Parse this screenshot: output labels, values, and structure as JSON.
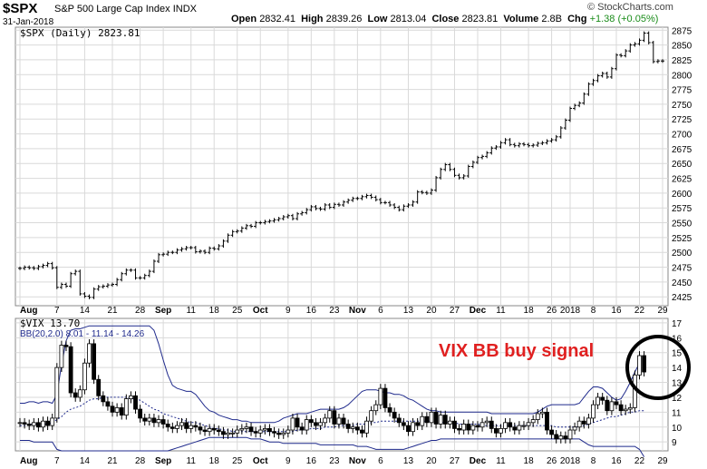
{
  "header": {
    "symbol": "$SPX",
    "company": "S&P 500 Large Cap Index",
    "exchange": "INDX",
    "date": "31-Jan-2018",
    "copyright": "© StockCharts.com",
    "open_label": "Open",
    "open": "2832.41",
    "high_label": "High",
    "high": "2839.26",
    "low_label": "Low",
    "low": "2813.04",
    "close_label": "Close",
    "close": "2823.81",
    "volume_label": "Volume",
    "volume": "2.8B",
    "chg_label": "Chg",
    "chg": "+1.38 (+0.05%)",
    "chg_arrow": "▲"
  },
  "chart_data": [
    {
      "type": "line",
      "title": "$SPX (Daily) 2823.81",
      "style": "ohlc-bars",
      "ylim": [
        2410,
        2880
      ],
      "yticks": [
        2425,
        2450,
        2475,
        2500,
        2525,
        2550,
        2575,
        2600,
        2625,
        2650,
        2675,
        2700,
        2725,
        2750,
        2775,
        2800,
        2825,
        2850,
        2875
      ],
      "xticks": [
        "Aug",
        "7",
        "14",
        "21",
        "28",
        "Sep",
        "11",
        "18",
        "25",
        "Oct",
        "9",
        "16",
        "23",
        "Nov",
        "6",
        "13",
        "20",
        "27",
        "Dec",
        "11",
        "18",
        "26",
        "2018",
        "8",
        "16",
        "22",
        "29"
      ],
      "grid": true,
      "series": [
        {
          "values": [
            2473,
            2475,
            2474,
            2473,
            2476,
            2478,
            2481,
            2474,
            2441,
            2446,
            2443,
            2464,
            2468,
            2430,
            2426,
            2424,
            2438,
            2442,
            2443,
            2445,
            2446,
            2454,
            2464,
            2470,
            2470,
            2457,
            2457,
            2461,
            2468,
            2485,
            2496,
            2497,
            2500,
            2500,
            2504,
            2506,
            2508,
            2508,
            2501,
            2502,
            2500,
            2507,
            2506,
            2511,
            2519,
            2529,
            2535,
            2536,
            2541,
            2545,
            2544,
            2550,
            2550,
            2552,
            2553,
            2555,
            2557,
            2560,
            2562,
            2557,
            2565,
            2567,
            2572,
            2577,
            2574,
            2573,
            2580,
            2576,
            2581,
            2580,
            2585,
            2588,
            2591,
            2591,
            2594,
            2596,
            2593,
            2589,
            2584,
            2584,
            2580,
            2576,
            2572,
            2578,
            2580,
            2585,
            2602,
            2601,
            2600,
            2605,
            2626,
            2640,
            2648,
            2640,
            2630,
            2626,
            2629,
            2645,
            2652,
            2660,
            2662,
            2668,
            2676,
            2678,
            2685,
            2690,
            2682,
            2680,
            2683,
            2682,
            2680,
            2681,
            2684,
            2685,
            2688,
            2690,
            2695,
            2710,
            2723,
            2743,
            2748,
            2752,
            2767,
            2784,
            2790,
            2798,
            2802,
            2796,
            2810,
            2833,
            2832,
            2840,
            2850,
            2852,
            2858,
            2870,
            2854,
            2822,
            2823,
            2823
          ]
        }
      ]
    },
    {
      "type": "line",
      "title": "$VIX 13.70",
      "indicator_label": "BB(20,2.0) 8.01 - 11.14 - 14.26",
      "annotation": "VIX BB buy signal",
      "style": "candlestick",
      "ylim": [
        8.4,
        17.3
      ],
      "yticks": [
        9,
        10,
        11,
        12,
        13,
        14,
        15,
        16,
        17
      ],
      "xticks": [
        "Aug",
        "7",
        "14",
        "21",
        "28",
        "Sep",
        "11",
        "18",
        "25",
        "Oct",
        "9",
        "16",
        "23",
        "Nov",
        "6",
        "13",
        "20",
        "27",
        "Dec",
        "11",
        "18",
        "26",
        "2018",
        "8",
        "16",
        "22",
        "29"
      ],
      "grid": true,
      "series": [
        {
          "name": "$VIX",
          "values": [
            10.3,
            10.2,
            10.1,
            10.3,
            10.0,
            10.4,
            10.1,
            10.6,
            14.0,
            15.5,
            15.4,
            12.3,
            12.0,
            12.5,
            14.3,
            15.6,
            13.2,
            12.1,
            11.7,
            11.4,
            11.0,
            11.3,
            10.8,
            11.9,
            12.1,
            11.2,
            10.6,
            10.4,
            10.6,
            10.3,
            10.5,
            10.2,
            10.0,
            9.9,
            10.1,
            10.3,
            9.9,
            10.1,
            10.0,
            9.8,
            9.7,
            9.9,
            9.8,
            9.7,
            9.5,
            9.6,
            9.6,
            9.8,
            9.9,
            10.0,
            9.7,
            9.6,
            9.8,
            9.9,
            9.7,
            9.6,
            9.5,
            9.6,
            9.8,
            10.6,
            10.0,
            9.8,
            10.5,
            10.3,
            10.1,
            10.3,
            10.6,
            11.1,
            10.2,
            10.6,
            10.2,
            9.9,
            10.0,
            9.8,
            9.6,
            10.4,
            11.1,
            11.5,
            12.6,
            11.3,
            11.0,
            10.6,
            10.3,
            10.1,
            9.7,
            10.3,
            10.1,
            10.7,
            10.3,
            11.0,
            10.2,
            10.8,
            10.2,
            10.4,
            9.9,
            9.8,
            10.2,
            9.8,
            10.1,
            10.0,
            10.3,
            10.4,
            9.9,
            9.6,
            9.9,
            10.3,
            10.0,
            9.8,
            10.1,
            10.1,
            10.3,
            10.5,
            10.9,
            11.0,
            9.8,
            9.5,
            9.2,
            9.4,
            9.2,
            9.8,
            10.0,
            10.4,
            10.2,
            10.6,
            11.5,
            12.0,
            11.8,
            11.1,
            11.7,
            11.5,
            11.1,
            11.2,
            11.3,
            13.5,
            14.8,
            13.7
          ]
        },
        {
          "name": "BB upper",
          "values": [
            11.6,
            11.6,
            11.7,
            11.7,
            11.6,
            11.7,
            11.7,
            11.6,
            12.2,
            14.2,
            15.8,
            16.5,
            16.6,
            16.6,
            16.7,
            16.8,
            16.8,
            16.8,
            16.8,
            16.8,
            16.8,
            16.8,
            16.8,
            16.8,
            16.8,
            16.8,
            16.8,
            16.8,
            16.8,
            16.5,
            15.6,
            14.5,
            13.5,
            12.8,
            12.6,
            12.5,
            12.4,
            12.4,
            12.2,
            11.8,
            11.4,
            11.1,
            11.0,
            10.8,
            10.7,
            10.6,
            10.5,
            10.5,
            10.4,
            10.4,
            10.3,
            10.3,
            10.3,
            10.3,
            10.3,
            10.3,
            10.4,
            10.6,
            10.7,
            10.8,
            10.9,
            10.9,
            10.9,
            11.0,
            11.1,
            11.2,
            11.2,
            11.2,
            11.2,
            11.2,
            11.3,
            11.5,
            11.8,
            12.1,
            12.4,
            12.5,
            12.5,
            12.5,
            12.4,
            12.3,
            12.3,
            12.2,
            12.2,
            12.1,
            11.9,
            11.8,
            11.6,
            11.4,
            11.2,
            11.1,
            11.1,
            11.0,
            11.0,
            11.0,
            11.0,
            11.0,
            11.0,
            11.0,
            11.0,
            11.0,
            11.0,
            11.0,
            10.9,
            10.9,
            10.9,
            10.9,
            10.9,
            10.9,
            10.9,
            10.9,
            10.9,
            10.9,
            11.0,
            11.2,
            11.4,
            11.5,
            11.5,
            11.5,
            11.5,
            11.5,
            11.5,
            11.6,
            12.0,
            12.4,
            12.7,
            12.7,
            12.6,
            12.3,
            12.0,
            11.8,
            11.9,
            12.4,
            13.0,
            13.7,
            14.3
          ]
        },
        {
          "name": "BB middle",
          "values": [
            10.1,
            10.1,
            10.2,
            10.2,
            10.2,
            10.2,
            10.2,
            10.3,
            10.5,
            10.7,
            11.0,
            11.2,
            11.3,
            11.4,
            11.6,
            11.8,
            11.9,
            11.9,
            12.0,
            12.0,
            12.0,
            12.0,
            12.0,
            12.0,
            11.9,
            11.9,
            11.8,
            11.6,
            11.4,
            11.2,
            11.1,
            10.9,
            10.8,
            10.7,
            10.6,
            10.5,
            10.4,
            10.3,
            10.3,
            10.2,
            10.1,
            10.0,
            9.9,
            9.9,
            9.8,
            9.8,
            9.7,
            9.7,
            9.7,
            9.7,
            9.7,
            9.7,
            9.7,
            9.7,
            9.7,
            9.7,
            9.7,
            9.7,
            9.7,
            9.7,
            9.8,
            9.8,
            9.8,
            9.9,
            9.9,
            9.9,
            10.0,
            10.0,
            10.0,
            10.1,
            10.1,
            10.1,
            10.1,
            10.2,
            10.2,
            10.2,
            10.3,
            10.3,
            10.4,
            10.4,
            10.4,
            10.4,
            10.4,
            10.4,
            10.4,
            10.4,
            10.4,
            10.4,
            10.4,
            10.4,
            10.4,
            10.3,
            10.3,
            10.3,
            10.3,
            10.2,
            10.2,
            10.2,
            10.2,
            10.2,
            10.1,
            10.1,
            10.1,
            10.1,
            10.1,
            10.1,
            10.1,
            10.1,
            10.1,
            10.1,
            10.1,
            10.1,
            10.1,
            10.1,
            10.1,
            10.1,
            10.0,
            10.0,
            10.0,
            10.0,
            10.0,
            10.0,
            10.1,
            10.2,
            10.3,
            10.4,
            10.5,
            10.6,
            10.7,
            10.7,
            10.8,
            10.9,
            11.0,
            11.0,
            11.1,
            11.1
          ]
        },
        {
          "name": "BB lower",
          "values": [
            9.1,
            9.1,
            9.1,
            9.0,
            9.0,
            9.0,
            9.0,
            9.0,
            8.5,
            8.4,
            8.4,
            8.4,
            8.4,
            8.4,
            8.4,
            8.4,
            8.4,
            8.4,
            8.4,
            8.4,
            8.4,
            8.4,
            8.4,
            8.4,
            8.4,
            8.4,
            8.4,
            8.4,
            8.4,
            8.4,
            8.4,
            8.4,
            8.4,
            8.5,
            8.6,
            8.7,
            8.8,
            8.9,
            9.0,
            9.1,
            9.2,
            9.3,
            9.3,
            9.3,
            9.3,
            9.3,
            9.3,
            9.3,
            9.3,
            9.3,
            9.2,
            9.2,
            9.2,
            9.1,
            9.0,
            9.0,
            9.0,
            8.9,
            8.9,
            8.9,
            8.9,
            8.9,
            8.9,
            8.9,
            8.9,
            8.8,
            8.8,
            8.8,
            8.8,
            8.8,
            8.8,
            8.8,
            8.8,
            8.7,
            8.7,
            8.7,
            8.6,
            8.5,
            8.5,
            8.5,
            8.5,
            8.5,
            8.5,
            8.5,
            8.6,
            8.7,
            8.8,
            8.9,
            9.0,
            9.1,
            9.1,
            9.2,
            9.2,
            9.2,
            9.2,
            9.2,
            9.2,
            9.2,
            9.2,
            9.2,
            9.2,
            9.2,
            9.2,
            9.2,
            9.2,
            9.2,
            9.2,
            9.2,
            9.2,
            9.2,
            9.2,
            9.2,
            9.2,
            9.2,
            9.2,
            9.2,
            9.2,
            9.2,
            9.2,
            9.2,
            9.2,
            9.2,
            9.0,
            8.8,
            8.7,
            8.7,
            8.7,
            8.7,
            8.7,
            8.7,
            8.7,
            8.7,
            8.7,
            8.7,
            8.5,
            8.0
          ]
        }
      ]
    }
  ],
  "colors": {
    "grid": "#d9d9d9",
    "bb_band": "#1f2a8c",
    "annotation": "#e02020",
    "candle_up": "#ffffff",
    "candle_down": "#000000",
    "circle": "#000000"
  }
}
